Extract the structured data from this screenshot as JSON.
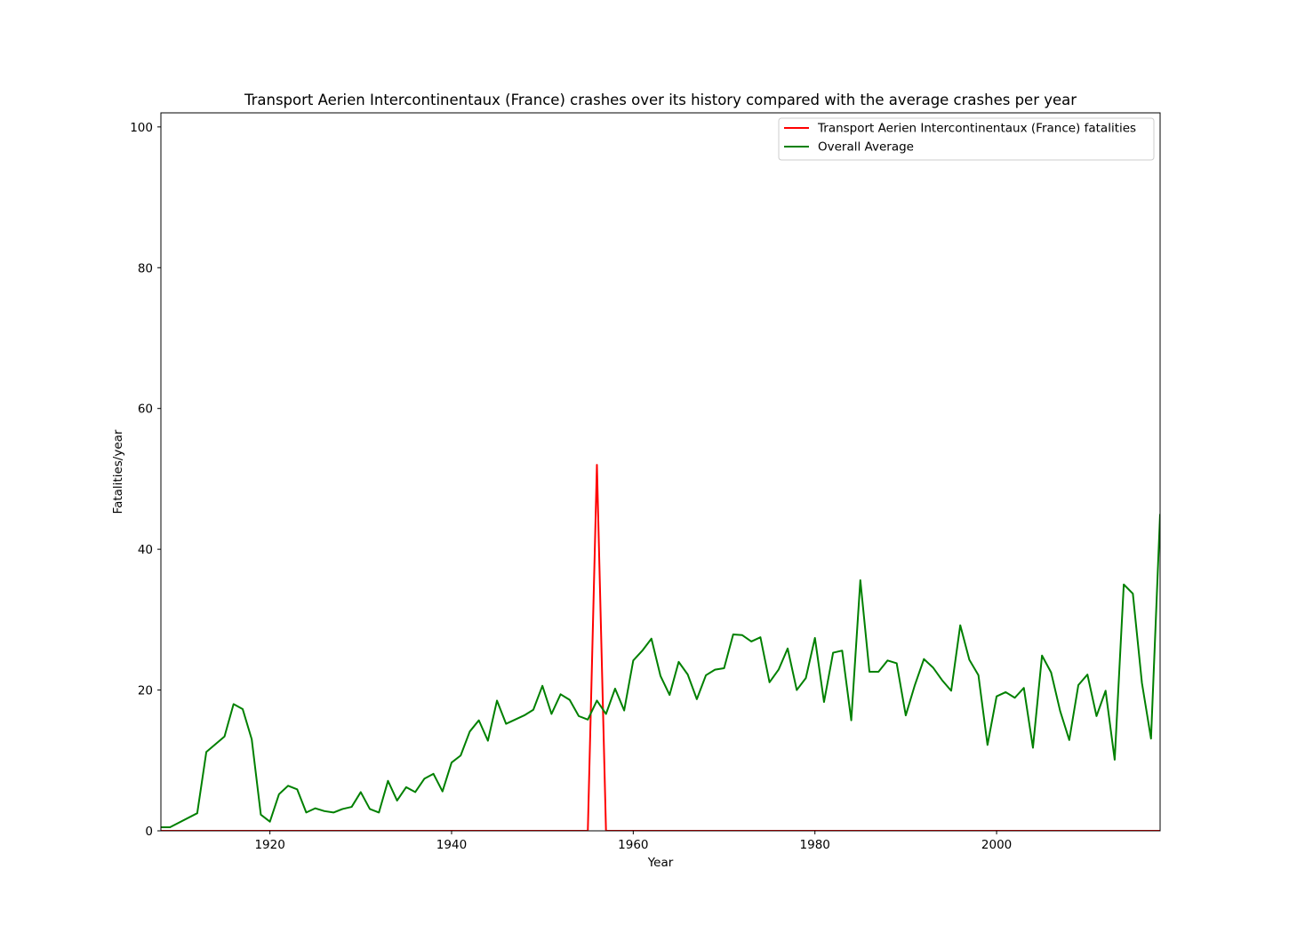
{
  "chart_data": {
    "type": "line",
    "title": "Transport Aerien Intercontinentaux (France) crashes over its history compared with the average crashes per year",
    "xlabel": "Year",
    "ylabel": "Fatalities/year",
    "xlim": [
      1908,
      2018
    ],
    "ylim": [
      0,
      102
    ],
    "xticks": [
      1920,
      1940,
      1960,
      1980,
      2000
    ],
    "yticks": [
      0,
      20,
      40,
      60,
      80,
      100
    ],
    "grid": false,
    "legend_position": "upper right",
    "series": [
      {
        "name": "Transport Aerien Intercontinentaux (France) fatalities",
        "color": "#ff0000",
        "x": [
          1908,
          1955,
          1956,
          1957,
          2018
        ],
        "y": [
          0,
          0,
          52,
          0,
          0
        ]
      },
      {
        "name": "Overall Average",
        "color": "#008000",
        "x": [
          1908,
          1909,
          1912,
          1913,
          1915,
          1916,
          1917,
          1918,
          1919,
          1920,
          1921,
          1922,
          1923,
          1924,
          1925,
          1926,
          1927,
          1928,
          1929,
          1930,
          1931,
          1932,
          1933,
          1934,
          1935,
          1936,
          1937,
          1938,
          1939,
          1940,
          1941,
          1942,
          1943,
          1944,
          1945,
          1946,
          1947,
          1948,
          1949,
          1950,
          1951,
          1952,
          1953,
          1954,
          1955,
          1956,
          1957,
          1958,
          1959,
          1960,
          1961,
          1962,
          1963,
          1964,
          1965,
          1966,
          1967,
          1968,
          1969,
          1970,
          1971,
          1972,
          1973,
          1974,
          1975,
          1976,
          1977,
          1978,
          1979,
          1980,
          1981,
          1982,
          1983,
          1984,
          1985,
          1986,
          1987,
          1988,
          1989,
          1990,
          1991,
          1992,
          1993,
          1994,
          1995,
          1996,
          1997,
          1998,
          1999,
          2000,
          2001,
          2002,
          2003,
          2004,
          2005,
          2006,
          2007,
          2008,
          2009,
          2010,
          2011,
          2012,
          2013,
          2014,
          2015,
          2016,
          2017,
          2018
        ],
        "y": [
          0.5,
          0.5,
          2.5,
          11.2,
          13.4,
          18.0,
          17.3,
          13.0,
          2.3,
          1.3,
          5.2,
          6.4,
          5.9,
          2.6,
          3.2,
          2.8,
          2.6,
          3.1,
          3.4,
          5.5,
          3.1,
          2.6,
          7.1,
          4.3,
          6.2,
          5.5,
          7.4,
          8.1,
          5.6,
          9.7,
          10.7,
          14.1,
          15.7,
          12.8,
          18.5,
          15.2,
          15.8,
          16.4,
          17.2,
          20.6,
          16.6,
          19.4,
          18.6,
          16.3,
          15.8,
          18.5,
          16.6,
          20.2,
          17.1,
          24.2,
          25.6,
          27.3,
          22.0,
          19.3,
          24.0,
          22.2,
          18.7,
          22.1,
          22.9,
          23.1,
          27.9,
          27.8,
          26.9,
          27.5,
          21.1,
          22.9,
          25.9,
          20.0,
          21.7,
          27.4,
          18.3,
          25.3,
          25.6,
          15.7,
          35.6,
          22.6,
          22.6,
          24.2,
          23.8,
          16.4,
          20.7,
          24.4,
          23.2,
          21.4,
          19.9,
          29.2,
          24.3,
          22.1,
          12.2,
          19.1,
          19.7,
          18.9,
          20.3,
          11.8,
          24.9,
          22.5,
          17.0,
          12.9,
          20.7,
          22.2,
          16.3,
          19.9,
          10.1,
          35.0,
          33.7,
          21.0,
          13.1,
          45.0
        ]
      }
    ]
  }
}
